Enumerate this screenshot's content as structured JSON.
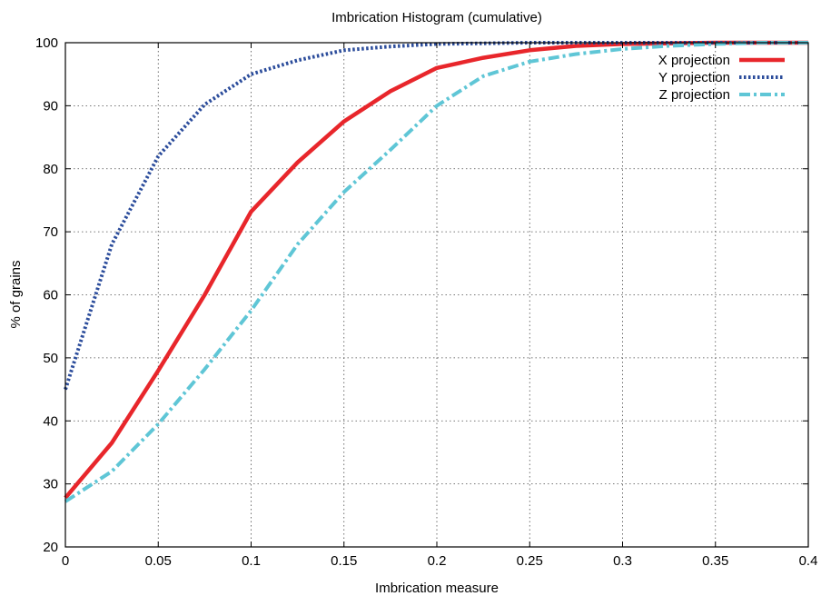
{
  "chart_data": {
    "type": "line",
    "title": "Imbrication Histogram (cumulative)",
    "xlabel": "Imbrication measure",
    "ylabel": "% of grains",
    "xlim": [
      0,
      0.4
    ],
    "ylim": [
      20,
      100
    ],
    "xticks": [
      "0",
      "0.05",
      "0.1",
      "0.15",
      "0.2",
      "0.25",
      "0.3",
      "0.35",
      "0.4"
    ],
    "yticks": [
      "20",
      "30",
      "40",
      "50",
      "60",
      "70",
      "80",
      "90",
      "100"
    ],
    "grid": true,
    "legend_position": "top-right",
    "x": [
      0,
      0.025,
      0.05,
      0.075,
      0.1,
      0.125,
      0.15,
      0.175,
      0.2,
      0.225,
      0.25,
      0.275,
      0.3,
      0.325,
      0.35,
      0.375,
      0.4
    ],
    "series": [
      {
        "name": "X projection",
        "color": "#e8262b",
        "style": "solid",
        "values": [
          27.8,
          36.5,
          48.0,
          60.0,
          73.2,
          81.0,
          87.5,
          92.3,
          96.0,
          97.6,
          98.8,
          99.5,
          99.8,
          99.9,
          100,
          100,
          100
        ]
      },
      {
        "name": "Y projection",
        "color": "#2b4c9b",
        "style": "dotted",
        "values": [
          45.0,
          68.0,
          82.0,
          90.2,
          95.0,
          97.2,
          98.8,
          99.4,
          99.8,
          99.9,
          100,
          100,
          100,
          100,
          100,
          100,
          100
        ]
      },
      {
        "name": "Z projection",
        "color": "#5fc6d6",
        "style": "dash-dot",
        "values": [
          27.2,
          32.0,
          39.5,
          48.2,
          57.5,
          68.0,
          76.3,
          83.0,
          90.0,
          94.7,
          97.0,
          98.2,
          99.0,
          99.5,
          99.8,
          100,
          100
        ]
      }
    ]
  }
}
